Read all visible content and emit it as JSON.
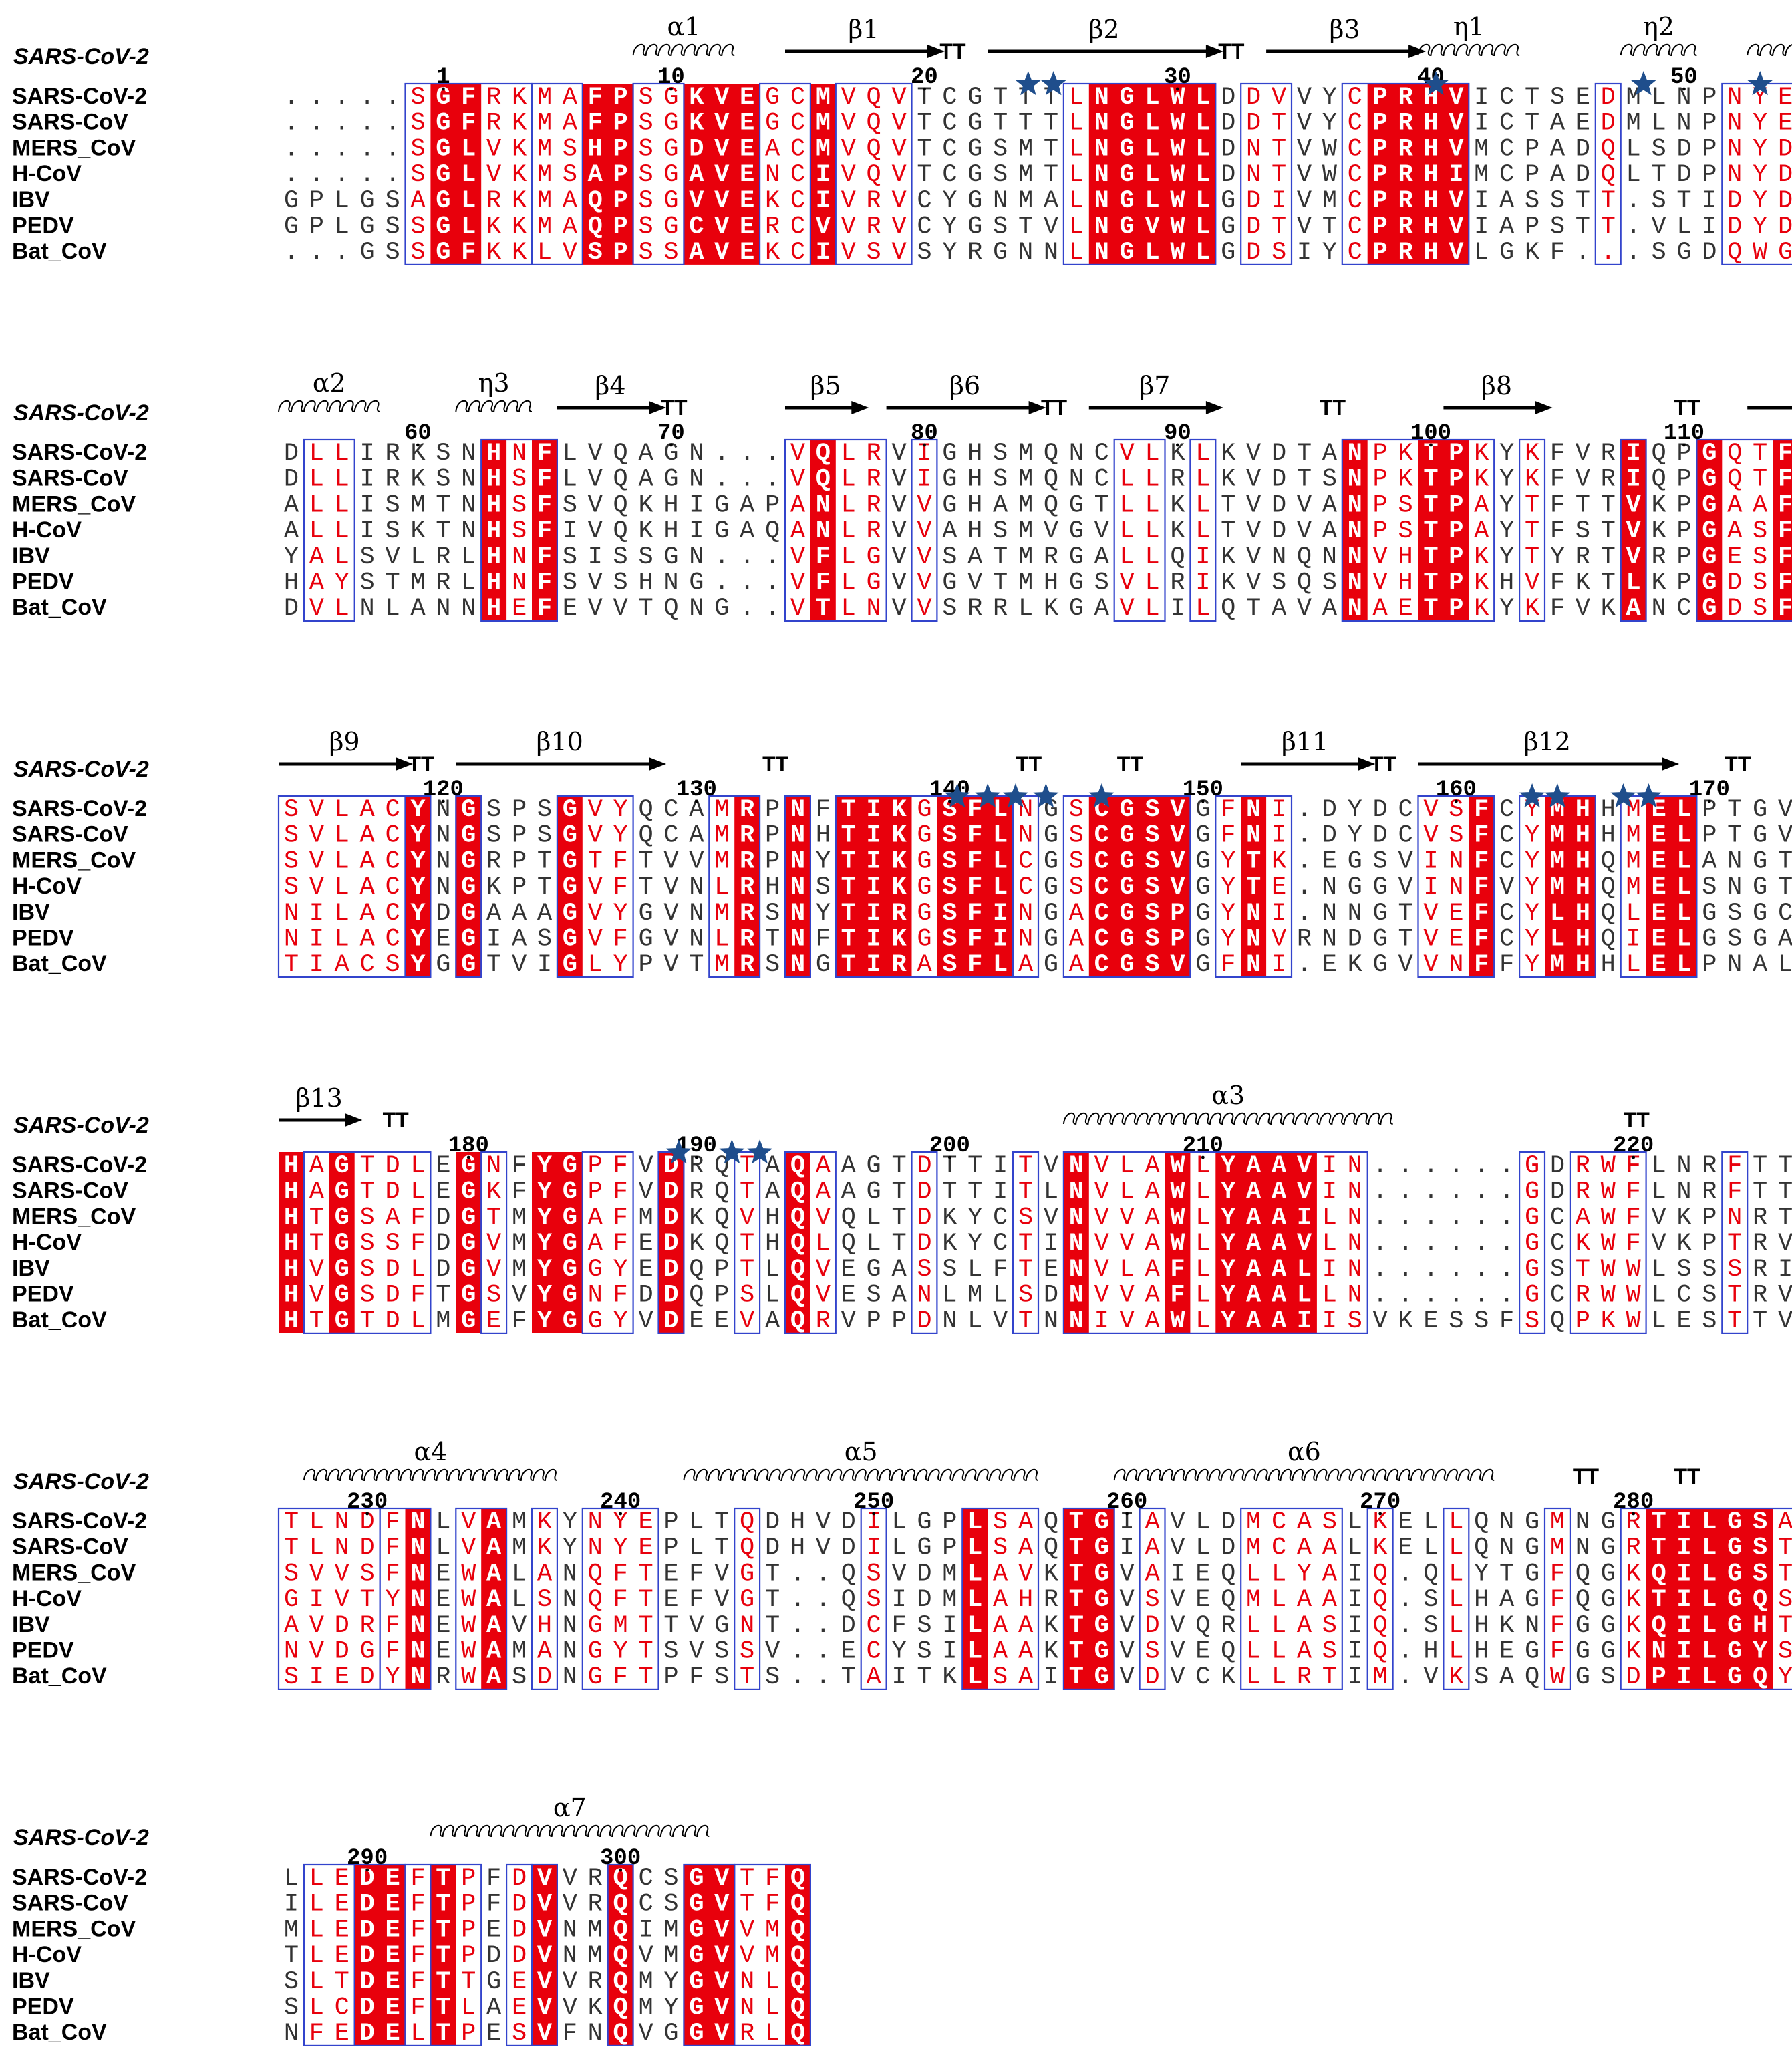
{
  "figure": {
    "reference_label": "SARS-CoV-2",
    "sequence_names": [
      "SARS-CoV-2",
      "SARS-CoV",
      "MERS_CoV",
      "H-CoV",
      "IBV",
      "PEDV",
      "Bat_CoV"
    ],
    "colors": {
      "identical_bg": "#e8000c",
      "similar_text": "#e8000c",
      "box": "#3344cc",
      "star": "#1f4e8c",
      "text": "#333333"
    }
  },
  "blocks": [
    {
      "seqs": [
        ".....SGFRKMAFPSGKVEGCMVQVTCGTTTLNGLWLDDVVYCPRHVICTSEDMLNPNYE",
        ".....SGFRKMAFPSGKVEGCMVQVTCGTTTLNGLWLDDTVYCPRHVICTAEDMLNPNYE",
        ".....SGLVKMSHPSGDVEACMVQVTCGSMTLNGLWLDNTVWCPRHVMCPADQLSDPNYD",
        ".....SGLVKMSAPSGAVENCIVQVTCGSMTLNGLWLDNTVWCPRHIMCPADQLTDPNYD",
        "GPLGSAGLRKMAQPSGVVEKCIVRVCYGNMALNGLWLGDIVMCPRHVIASSTT.STIDYD",
        "GPLGSSGLKKMAQPSGCVERCVVRVCYGSTVLNGVWLGDTVTCPRHVIAPSTT.VLIDYD",
        "...GSSGFKKLVSPSSAVEKCIVSVSYRGNNLNGLWLGDSIYCPRHVLGKF...SGDQWG"
      ],
      "ticks": [
        [
          6,
          "1"
        ],
        [
          15,
          "10"
        ],
        [
          25,
          "20"
        ],
        [
          35,
          "30"
        ],
        [
          45,
          "40"
        ],
        [
          55,
          "50"
        ]
      ],
      "ss": [
        [
          "helix",
          14,
          17,
          "α1"
        ],
        [
          "arrow",
          20,
          26,
          "β1"
        ],
        [
          "tt",
          26,
          "TT"
        ],
        [
          "arrow",
          28,
          37,
          "β2"
        ],
        [
          "tt",
          37,
          "TT"
        ],
        [
          "arrow",
          39,
          45,
          "β3"
        ],
        [
          "helix",
          45,
          48,
          "η1"
        ],
        [
          "helix",
          53,
          55,
          "η2"
        ],
        [
          "helix",
          58,
          59,
          ""
        ]
      ],
      "stars": [
        29.6,
        30.6,
        45.7,
        53.9,
        58.5
      ],
      "identical": [
        [
          6,
          7
        ],
        [
          12,
          13
        ],
        [
          16,
          18
        ],
        [
          21,
          21
        ],
        [
          32,
          36
        ],
        [
          43,
          46
        ]
      ],
      "boxes": [
        [
          5,
          9
        ],
        [
          10,
          11
        ],
        [
          14,
          15
        ],
        [
          19,
          20
        ],
        [
          22,
          24
        ],
        [
          31,
          36
        ],
        [
          38,
          39
        ],
        [
          42,
          46
        ],
        [
          52,
          52
        ],
        [
          57,
          59
        ]
      ]
    },
    {
      "seqs": [
        "DLLIRKSNHNFLVQAGN...VQLRVIGHSMQNCVLKLKVDTANPKTPKYKFVRIQPGQTF",
        "DLLIRKSNHSFLVQAGN...VQLRVIGHSMQNCLLRLKVDTSNPKTPKYKFVRIQPGQTF",
        "ALLISMTNHSFSVQKHIGAPANLRVVGHAMQGTLLKLTVDVANPSTPAYTFTTVKPGAAF",
        "ALLISKTNHSFIVQKHIGAQANLRVVAHSMVGVLLKLTVDVANPSTPAYTFSTVKPGASF",
        "YALSVLRLHNFSISSGN...VFLGVVSATMRGALLQIKVNQNNVHTPKYTYRTVRPGESF",
        "HAYSTMRLHNFSVSHNG...VFLGVVGVTMHGSVLRIKVSQSNVHTPKHVFKTLKPGDSF",
        "DVLNLANNHEFEVVTQNG..VTLNVVSRRLKGAVLILQTAVANAETPKYKFVKANCGDSF"
      ],
      "ticks": [
        [
          5,
          "60"
        ],
        [
          15,
          "70"
        ],
        [
          25,
          "80"
        ],
        [
          35,
          "90"
        ],
        [
          45,
          "100"
        ],
        [
          55,
          "110"
        ]
      ],
      "ss": [
        [
          "helix",
          0,
          3,
          "α2"
        ],
        [
          "helix",
          7,
          9,
          "η3"
        ],
        [
          "arrow",
          11,
          15,
          "β4"
        ],
        [
          "tt",
          15,
          "TT"
        ],
        [
          "arrow",
          20,
          23,
          "β5"
        ],
        [
          "arrow",
          24,
          30,
          "β6"
        ],
        [
          "tt",
          30,
          "TT"
        ],
        [
          "arrow",
          32,
          37,
          "β7"
        ],
        [
          "tt",
          41,
          "TT"
        ],
        [
          "arrow",
          46,
          50,
          "β8"
        ],
        [
          "tt",
          55,
          "TT"
        ],
        [
          "line",
          58,
          60,
          ""
        ]
      ],
      "stars": [],
      "identical": [
        [
          8,
          8
        ],
        [
          10,
          10
        ],
        [
          21,
          21
        ],
        [
          42,
          42
        ],
        [
          45,
          46
        ],
        [
          53,
          53
        ],
        [
          56,
          56
        ],
        [
          59,
          59
        ]
      ],
      "boxes": [
        [
          1,
          2
        ],
        [
          8,
          10
        ],
        [
          20,
          23
        ],
        [
          25,
          25
        ],
        [
          33,
          34
        ],
        [
          36,
          36
        ],
        [
          42,
          47
        ],
        [
          49,
          49
        ],
        [
          53,
          53
        ],
        [
          56,
          59
        ]
      ]
    },
    {
      "seqs": [
        "SVLACYNGSPSGVYQCAMRPNFTIKGSFLNGSCGSVGFNI.DYDCVSFCYMHHMELPTGV",
        "SVLACYNGSPSGVYQCAMRPNHTIKGSFLNGSCGSVGFNI.DYDCVSFCYMHHMELPTGV",
        "SVLACYNGRPTGTFTVVMRPNYTIKGSFLCGSCGSVGYTK.EGSVINFCYMHQMELANGT",
        "SVLACYNGKPTGVFTVNLRHNSTIKGSFLCGSCGSVGYTE.NGGVINFVYMHQMELSNGT",
        "NILACYDGAAAGVYGVNMRSNYTIRGSFINGACGSPGYNI.NNGTVEFCYLHQLELGSGC",
        "NILACYEGIASGVFGVNLRTNFTIKGSFINGACGSPGYNVRNDGTVEFCYLHQIELGSGA",
        "TIACSYGGTVIGLYPVTMRSNGTIRASFLAGACGSVGFNI.EKGVVNFFYMHHLELPNAL"
      ],
      "ticks": [
        [
          6,
          "120"
        ],
        [
          16,
          "130"
        ],
        [
          26,
          "140"
        ],
        [
          36,
          "150"
        ],
        [
          46,
          "160"
        ],
        [
          56,
          "170"
        ]
      ],
      "ss": [
        [
          "arrow",
          0,
          5,
          "β9"
        ],
        [
          "tt",
          5,
          "TT"
        ],
        [
          "arrow",
          7,
          15,
          "β10"
        ],
        [
          "tt",
          19,
          "TT"
        ],
        [
          "tt",
          29,
          "TT"
        ],
        [
          "tt",
          33,
          "TT"
        ],
        [
          "line",
          38,
          42,
          "β11"
        ],
        [
          "arrow",
          42,
          43,
          ""
        ],
        [
          "tt",
          43,
          "TT"
        ],
        [
          "arrow",
          45,
          55,
          "β12"
        ],
        [
          "tt",
          57,
          "TT"
        ]
      ],
      "stars": [
        26.8,
        28,
        29.1,
        30.3,
        32.5,
        49.5,
        50.5,
        53.1,
        54.1
      ],
      "identical": [
        [
          5,
          5
        ],
        [
          7,
          7
        ],
        [
          11,
          11
        ],
        [
          18,
          18
        ],
        [
          20,
          20
        ],
        [
          22,
          24
        ],
        [
          26,
          28
        ],
        [
          32,
          35
        ],
        [
          38,
          38
        ],
        [
          47,
          47
        ],
        [
          50,
          51
        ],
        [
          54,
          55
        ]
      ],
      "boxes": [
        [
          0,
          4
        ],
        [
          5,
          5
        ],
        [
          7,
          7
        ],
        [
          11,
          13
        ],
        [
          17,
          18
        ],
        [
          20,
          20
        ],
        [
          22,
          28
        ],
        [
          29,
          29
        ],
        [
          31,
          35
        ],
        [
          37,
          39
        ],
        [
          45,
          47
        ],
        [
          49,
          51
        ],
        [
          53,
          55
        ]
      ]
    },
    {
      "seqs": [
        "HAGTDLEGNFYGPFVDRQTAQAAGTDTTITVNVLAWLYAAVIN......GDRWFLNRFTT",
        "HAGTDLEGKFYGPFVDRQTAQAAGTDTTITLNVLAWLYAAVIN......GDRWFLNRFTT",
        "HTGSAFDGTMYGAFMDKQVHQVQLTDKYCSVNVVAWLYAAILN......GCAWFVKPNRT",
        "HTGSSFDGVMYGAFEDKQTHQLQLTDKYCTINVVAWLYAAVLN......GCKWFVKPTRV",
        "HVGSDLDGVMYGGYEDQPTLQVEGASSLFTENVLAFLYAALIN......GSTWWLSSSRI",
        "HVGSDFTGSVYGNFDDQPSLQVESANLMLSDNVVAFLYAALLN......GCRWWLCSTRV",
        "HTGTDLMGEFYGGYVDEEVAQRVPPDNLVTNNIVAWLYAAIISVKESSFSQPKWLESTTV"
      ],
      "ticks": [
        [
          7,
          "180"
        ],
        [
          16,
          "190"
        ],
        [
          26,
          "200"
        ],
        [
          36,
          "210"
        ],
        [
          53,
          "220"
        ]
      ],
      "ss": [
        [
          "arrow",
          0,
          3,
          "β13"
        ],
        [
          "tt",
          4,
          "TT"
        ],
        [
          "helix",
          31,
          43,
          "α3"
        ],
        [
          "tt",
          53,
          "TT"
        ]
      ],
      "stars": [
        15.8,
        17.9,
        19
      ],
      "identical": [
        [
          0,
          0
        ],
        [
          2,
          2
        ],
        [
          7,
          7
        ],
        [
          10,
          11
        ],
        [
          15,
          15
        ],
        [
          20,
          20
        ],
        [
          31,
          31
        ],
        [
          35,
          35
        ],
        [
          37,
          40
        ]
      ],
      "boxes": [
        [
          1,
          5
        ],
        [
          8,
          8
        ],
        [
          12,
          13
        ],
        [
          15,
          15
        ],
        [
          18,
          18
        ],
        [
          20,
          21
        ],
        [
          25,
          25
        ],
        [
          29,
          29
        ],
        [
          31,
          42
        ],
        [
          49,
          49
        ],
        [
          51,
          53
        ],
        [
          57,
          57
        ]
      ]
    },
    {
      "seqs": [
        "TLNDFNLVAMKYNYEPLTQDHVDILGPLSAQTGIAVLDMCASLKELLQNGMNGRTILGSA",
        "TLNDFNLVAMKYNYEPLTQDHVDILGPLSAQTGIAVLDMCAALKELLQNGMNGRTILGST",
        "SVVSFNEWALANQFTEFVGT..QSVDMLAVKTGVAIEQLLYAIQ.QLYTGFQGKQILGST",
        "GIVTYNEWALSNQFTEFVGT..QSIDMLAHRTGVSVEQMLAAIQ.SLHAGFQGKTILGQS",
        "AVDRFNEWAVHNGMTTVGNT..DCFSILAAKTGVDVQRLLASIQ.SLHKNFGGKQILGHT",
        "NVDGFNEWAMANGYTSVSSV..ECYSILAAKTGVSVEQLLASIQ.HLHEGFGGKNILGYS",
        "SIEDYNRWASDNGFTPFSTS..TAITKLSAITGVDVCKLLRTIM.VKSAQWGSDPILGQY"
      ],
      "ticks": [
        [
          3,
          "230"
        ],
        [
          13,
          "240"
        ],
        [
          23,
          "250"
        ],
        [
          33,
          "260"
        ],
        [
          43,
          "270"
        ],
        [
          53,
          "280"
        ]
      ],
      "ss": [
        [
          "helix",
          1,
          10,
          "α4"
        ],
        [
          "helix",
          16,
          29,
          "α5"
        ],
        [
          "helix",
          33,
          47,
          "α6"
        ],
        [
          "tt",
          51,
          "TT"
        ],
        [
          "tt",
          55,
          "TT"
        ]
      ],
      "stars": [],
      "identical": [
        [
          5,
          5
        ],
        [
          8,
          8
        ],
        [
          27,
          27
        ],
        [
          31,
          32
        ],
        [
          54,
          58
        ]
      ],
      "boxes": [
        [
          0,
          3
        ],
        [
          4,
          5
        ],
        [
          7,
          8
        ],
        [
          10,
          10
        ],
        [
          12,
          14
        ],
        [
          18,
          18
        ],
        [
          23,
          23
        ],
        [
          27,
          29
        ],
        [
          31,
          32
        ],
        [
          34,
          34
        ],
        [
          38,
          41
        ],
        [
          43,
          43
        ],
        [
          46,
          46
        ],
        [
          50,
          50
        ],
        [
          53,
          59
        ]
      ]
    },
    {
      "seqs": [
        "LLEDEFTPFDVVRQCSGVTFQ",
        "ILEDEFTPFDVVRQCSGVTFQ",
        "MLEDEFTPEDVNMQIMGVVMQ",
        "TLEDEFTPDDVNMQVMGVVMQ",
        "SLTDEFTTGEVVRQMYGVNLQ",
        "SLCDEFTLAEVVKQMYGVNLQ",
        "NFEDELTPESVFNQVGGVRLQ"
      ],
      "ticks": [
        [
          3,
          "290"
        ],
        [
          13,
          "300"
        ]
      ],
      "ss": [
        [
          "helix",
          6,
          16,
          "α7"
        ]
      ],
      "stars": [],
      "identical": [
        [
          3,
          4
        ],
        [
          6,
          6
        ],
        [
          10,
          10
        ],
        [
          13,
          13
        ],
        [
          16,
          17
        ],
        [
          20,
          20
        ]
      ],
      "boxes": [
        [
          1,
          2
        ],
        [
          3,
          4
        ],
        [
          5,
          5
        ],
        [
          6,
          7
        ],
        [
          9,
          9
        ],
        [
          10,
          10
        ],
        [
          13,
          13
        ],
        [
          16,
          17
        ],
        [
          18,
          20
        ]
      ]
    }
  ]
}
